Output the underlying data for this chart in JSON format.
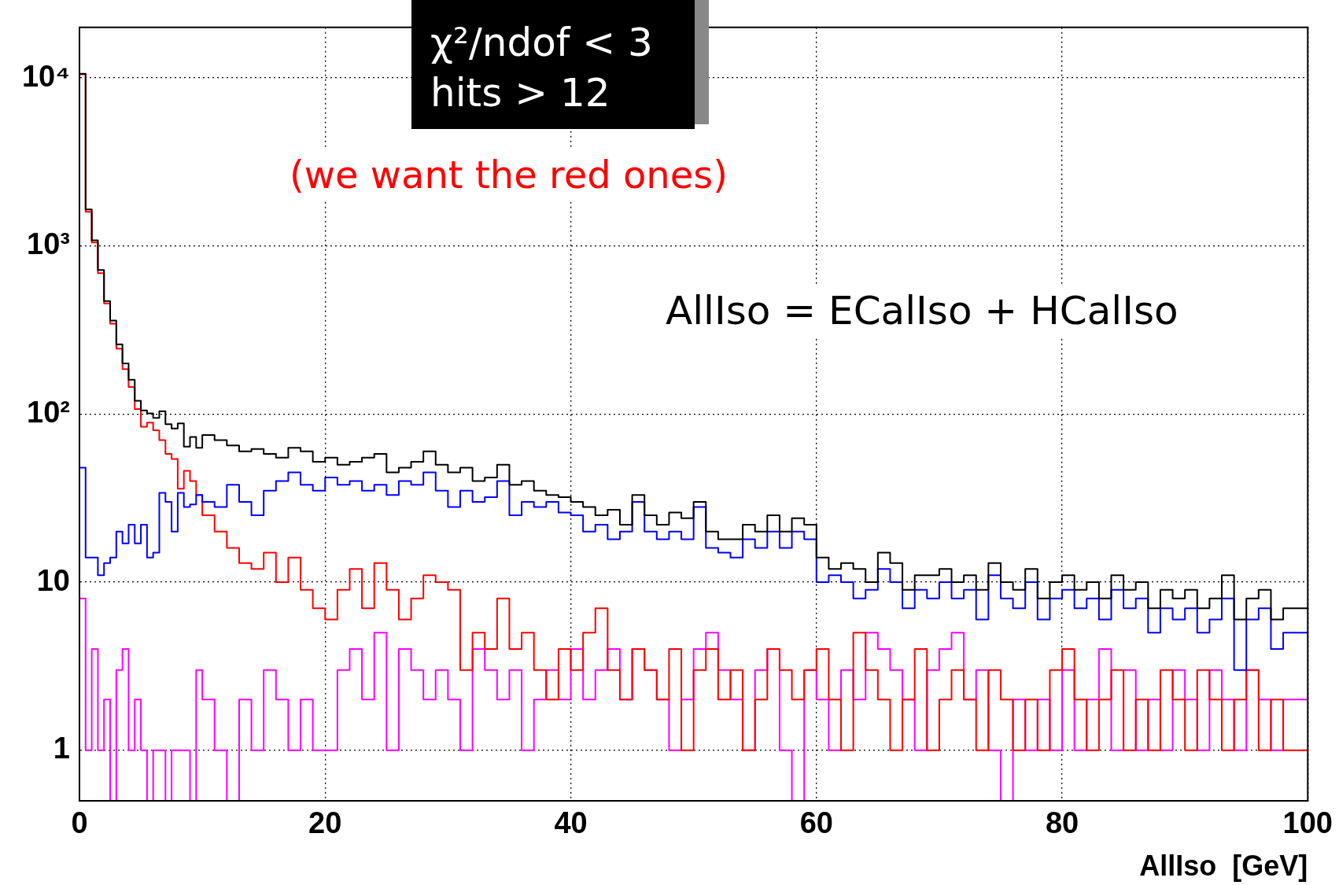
{
  "chart_data": {
    "type": "histogram",
    "xlabel": "AllIso  [GeV]",
    "annotations": [
      "χ²/ndof < 3",
      "hits > 12",
      "(we want the red ones)",
      "AllIso = ECalIso + HCalIso"
    ],
    "bins": [
      0,
      0.5,
      1,
      1.5,
      2,
      2.5,
      3,
      3.5,
      4,
      4.5,
      5,
      5.5,
      6,
      6.5,
      7,
      7.5,
      8,
      8.5,
      9,
      9.5,
      10,
      11,
      12,
      13,
      14,
      15,
      16,
      17,
      18,
      19,
      20,
      21,
      22,
      23,
      24,
      25,
      26,
      27,
      28,
      29,
      30,
      31,
      32,
      33,
      34,
      35,
      36,
      37,
      38,
      39,
      40,
      41,
      42,
      43,
      44,
      45,
      46,
      47,
      48,
      49,
      50,
      51,
      52,
      53,
      54,
      55,
      56,
      57,
      58,
      59,
      60,
      61,
      62,
      63,
      64,
      65,
      66,
      67,
      68,
      69,
      70,
      71,
      72,
      73,
      74,
      75,
      76,
      77,
      78,
      79,
      80,
      81,
      82,
      83,
      84,
      85,
      86,
      87,
      88,
      89,
      90,
      91,
      92,
      93,
      94,
      95,
      96,
      97,
      98,
      99,
      100
    ],
    "series": [
      {
        "color": "#000000",
        "values": [
          10600,
          1650,
          1080,
          720,
          470,
          360,
          260,
          200,
          160,
          120,
          105,
          101,
          95,
          104,
          87,
          82,
          88,
          64,
          73,
          63,
          75,
          70,
          65,
          60,
          62,
          58,
          55,
          63,
          60,
          52,
          55,
          50,
          52,
          55,
          58,
          45,
          48,
          52,
          60,
          50,
          45,
          48,
          40,
          42,
          50,
          38,
          40,
          35,
          33,
          32,
          30,
          28,
          25,
          27,
          22,
          33,
          25,
          22,
          26,
          24,
          30,
          20,
          18,
          18,
          22,
          20,
          25,
          20,
          24,
          22,
          14,
          12,
          13,
          12,
          10,
          15,
          13,
          9,
          11,
          11,
          12,
          10,
          11,
          9,
          13,
          10,
          9,
          12,
          8,
          10,
          11,
          9,
          10,
          8,
          11,
          9,
          10,
          7,
          9,
          8,
          9,
          7,
          8,
          11,
          6,
          8,
          9,
          6,
          7,
          7
        ]
      },
      {
        "color": "#0000ff",
        "values": [
          48,
          14,
          14,
          11,
          13,
          14,
          20,
          17,
          22,
          17,
          22,
          14,
          15,
          34,
          30,
          20,
          34,
          28,
          29,
          33,
          30,
          28,
          38,
          30,
          25,
          35,
          40,
          45,
          38,
          35,
          42,
          38,
          40,
          35,
          38,
          33,
          40,
          38,
          45,
          35,
          28,
          35,
          30,
          32,
          40,
          25,
          30,
          28,
          30,
          26,
          25,
          20,
          22,
          18,
          20,
          30,
          20,
          18,
          20,
          18,
          28,
          16,
          15,
          14,
          18,
          16,
          20,
          16,
          20,
          18,
          10,
          11,
          10,
          8,
          9,
          12,
          10,
          7,
          9,
          8,
          10,
          8,
          9,
          6,
          11,
          8,
          7,
          10,
          6,
          8,
          9,
          7,
          8,
          6,
          9,
          7,
          8,
          5,
          7,
          6,
          7,
          5,
          6,
          8,
          3,
          6,
          7,
          4,
          5,
          5
        ]
      },
      {
        "color": "#ff0000",
        "values": [
          10500,
          1600,
          1050,
          690,
          455,
          345,
          245,
          185,
          145,
          107,
          84,
          89,
          80,
          70,
          58,
          54,
          36,
          46,
          40,
          33,
          25,
          20,
          16,
          13,
          12,
          15,
          10,
          14,
          9,
          7,
          6,
          9,
          12,
          7,
          13,
          9,
          6,
          8,
          11,
          10,
          9,
          3,
          5,
          4,
          8,
          4,
          5,
          3,
          2,
          4,
          3,
          5,
          7,
          3,
          2,
          4,
          3,
          2,
          4,
          1,
          3,
          4,
          2,
          3,
          1,
          2,
          4,
          3,
          2,
          3,
          4,
          2,
          1,
          5,
          3,
          2,
          1,
          2,
          4,
          1,
          2,
          3,
          2,
          1,
          3,
          2,
          1,
          2,
          1,
          3,
          4,
          2,
          1,
          2,
          3,
          1,
          2,
          1,
          3,
          2,
          1,
          3,
          2,
          1,
          2,
          3,
          1,
          2,
          1,
          1
        ]
      },
      {
        "color": "#ff00ff",
        "values": [
          8,
          1,
          4,
          1,
          2,
          null,
          3,
          4,
          1,
          2,
          1,
          null,
          1,
          1,
          null,
          1,
          1,
          1,
          null,
          3,
          2,
          1,
          null,
          2,
          1,
          3,
          2,
          1,
          2,
          1,
          1,
          3,
          4,
          2,
          5,
          1,
          4,
          3,
          2,
          3,
          2,
          1,
          4,
          3,
          2,
          3,
          1,
          2,
          3,
          2,
          4,
          2,
          3,
          4,
          2,
          4,
          3,
          2,
          1,
          2,
          4,
          5,
          3,
          2,
          1,
          3,
          4,
          1,
          null,
          3,
          2,
          1,
          3,
          2,
          5,
          4,
          3,
          2,
          1,
          3,
          4,
          5,
          2,
          3,
          1,
          null,
          2,
          1,
          2,
          1,
          3,
          1,
          2,
          4,
          1,
          3,
          1,
          2,
          1,
          3,
          2,
          1,
          3,
          2,
          1,
          3,
          2,
          1,
          2,
          2
        ]
      }
    ],
    "xlim": [
      0,
      100
    ],
    "xticks": [
      0,
      20,
      40,
      60,
      80,
      100
    ],
    "ylim": [
      0.5,
      20000
    ],
    "yticks": [
      1,
      10,
      {
        "value": 100,
        "label": "10²"
      },
      {
        "value": 1000,
        "label": "10³"
      },
      {
        "value": 10000,
        "label": "10⁴"
      }
    ],
    "log": true,
    "grid": true
  }
}
